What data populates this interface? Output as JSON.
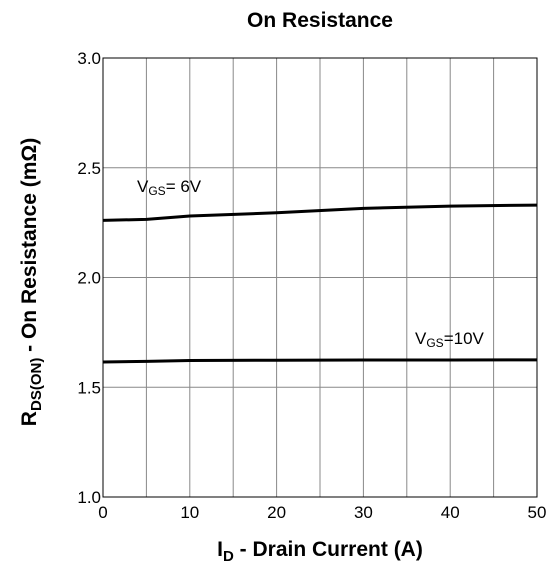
{
  "chart_data": {
    "type": "line",
    "title": "On Resistance",
    "x_label_parts": [
      "I",
      "D",
      " - Drain Current (A)"
    ],
    "y_label_parts": [
      "R",
      "DS(ON)",
      " - On Resistance (mΩ)"
    ],
    "x": [
      0,
      5,
      10,
      20,
      30,
      40,
      50
    ],
    "series": [
      {
        "name_parts": [
          "V",
          "GS",
          "= 6V"
        ],
        "color": "#000000",
        "values": [
          2.26,
          2.265,
          2.28,
          2.295,
          2.315,
          2.325,
          2.33
        ]
      },
      {
        "name_parts": [
          "V",
          "GS",
          "=10V"
        ],
        "color": "#000000",
        "values": [
          1.615,
          1.618,
          1.622,
          1.623,
          1.624,
          1.624,
          1.625
        ]
      }
    ],
    "xlim": [
      0,
      50
    ],
    "xticks": [
      0,
      10,
      20,
      30,
      40,
      50
    ],
    "x_minor_ticks": [
      5,
      15,
      25,
      35,
      45
    ],
    "ylim": [
      1.0,
      3.0
    ],
    "yticks": [
      {
        "value": 1.0,
        "label": "1.0"
      },
      {
        "value": 1.5,
        "label": "1.5"
      },
      {
        "value": 2.0,
        "label": "2.0"
      },
      {
        "value": 2.5,
        "label": "2.5"
      },
      {
        "value": 3.0,
        "label": "3.0"
      }
    ],
    "grid": true
  }
}
